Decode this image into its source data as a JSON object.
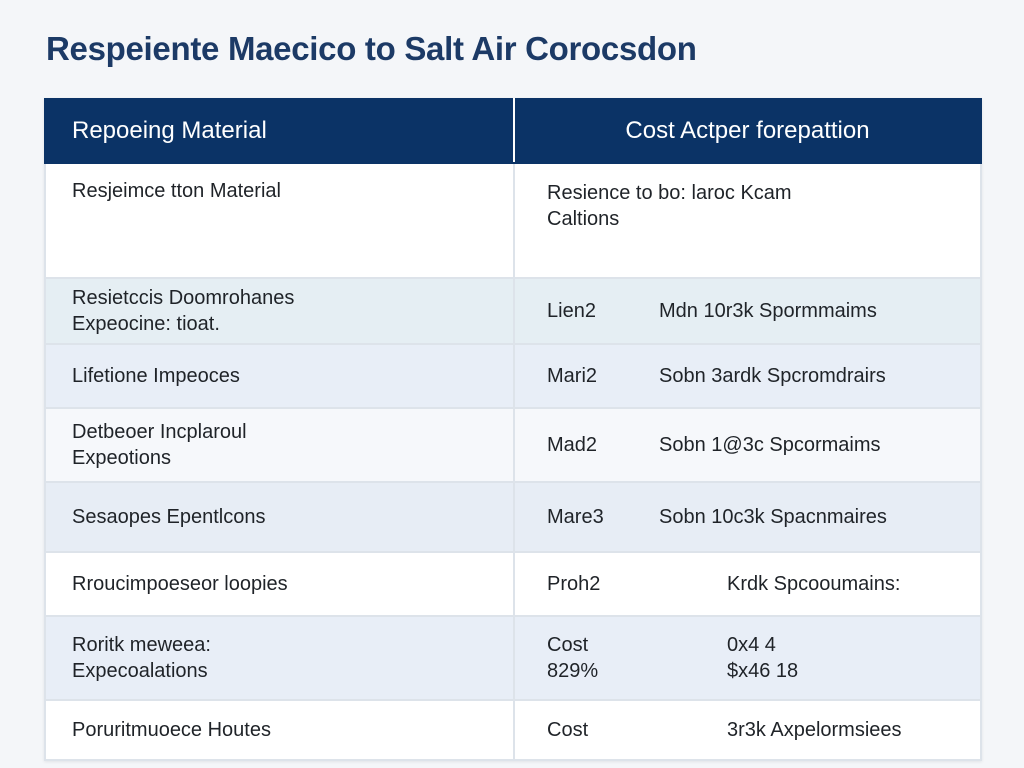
{
  "title": "Respeiente Maecico to Salt Air Corocsdon",
  "table": {
    "headers": [
      "Repoeing Material",
      "Cost Actper forepattion"
    ],
    "rows": [
      {
        "left": [
          "Resjeimce tton Material"
        ],
        "right_lines": [
          "Resience to bo: laroc Kcam",
          "Caltions"
        ]
      },
      {
        "left": [
          "Resietccis Doomrohanes",
          "Expeocine: tioat."
        ],
        "right_a": "Lien2",
        "right_b": "Mdn 10r3k  Spormmaims"
      },
      {
        "left": [
          "Lifetione Impeoces"
        ],
        "right_a": "Mari2",
        "right_b": "Sobn 3ardk  Spcromdrairs"
      },
      {
        "left": [
          "Detbeoer Incplaroul",
          "Expeotions"
        ],
        "right_a": "Mad2",
        "right_b": "Sobn 1@3c  Spcormaims"
      },
      {
        "left": [
          "Sesaopes Epentlcons"
        ],
        "right_a": "Mare3",
        "right_b": "Sobn 10c3k  Spacnmaires"
      },
      {
        "left": [
          "Rroucimpoeseor loopies"
        ],
        "right_a": "Proh2",
        "right_b": "Krdk  Spcooumains:"
      },
      {
        "left": [
          "Roritk meweea:",
          "Expecoalations"
        ],
        "right_a_lines": [
          "Cost",
          "829%"
        ],
        "right_b_lines": [
          "0x4 4",
          "$x46 18"
        ]
      },
      {
        "left": [
          "Poruritmuoece Houtes"
        ],
        "right_a": "Cost",
        "right_b": "3r3k Axpelormsiees"
      }
    ]
  }
}
